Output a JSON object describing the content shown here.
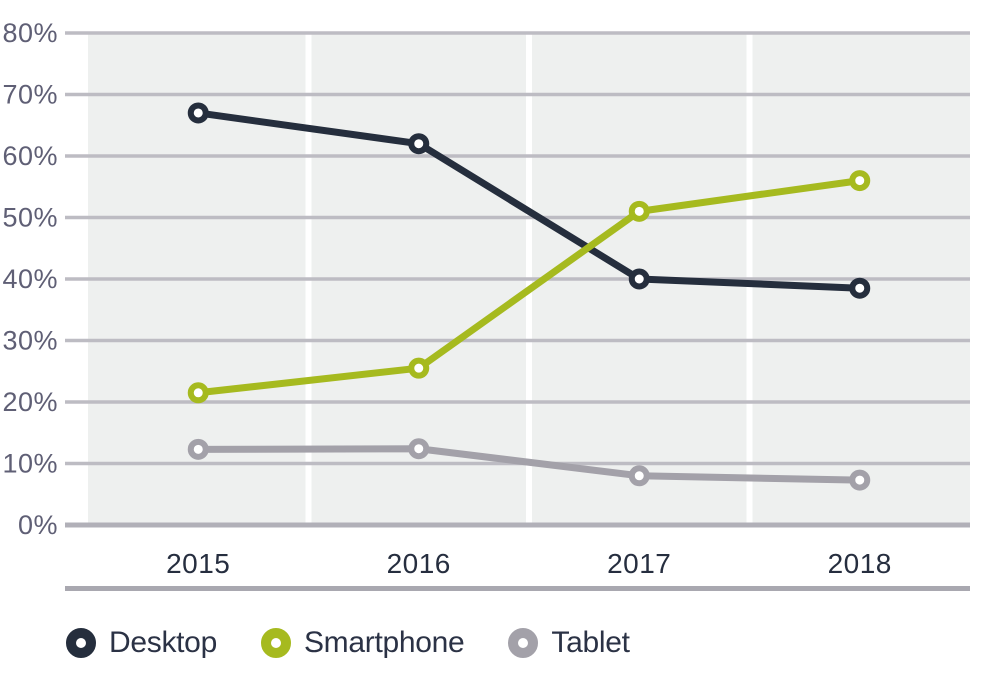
{
  "chart_data": {
    "type": "line",
    "title": "",
    "categories": [
      "2015",
      "2016",
      "2017",
      "2018"
    ],
    "series": [
      {
        "name": "Desktop",
        "color": "#252e3d",
        "values": [
          67,
          62,
          40,
          38.5
        ]
      },
      {
        "name": "Smartphone",
        "color": "#a6ba1f",
        "values": [
          21.5,
          25.5,
          51,
          56
        ]
      },
      {
        "name": "Tablet",
        "color": "#a3a1a9",
        "values": [
          12.3,
          12.4,
          8,
          7.3
        ]
      }
    ],
    "unit": "%",
    "ylim": [
      0,
      80
    ],
    "y_ticks": [
      "80%",
      "70%",
      "60%",
      "50%",
      "40%",
      "30%",
      "20%",
      "10%",
      "0%"
    ],
    "grid": true,
    "legend_position": "bottom",
    "colors": {
      "plot_background": "#eef0ef",
      "band_separator": "#ffffff",
      "gridline": "#bdbcc3",
      "zero_line": "#b1b0b8",
      "axis_separator": "#a9a8b0",
      "y_tick_text": "#5f5f75",
      "x_tick_text": "#262e3f",
      "legend_text": "#2b3245",
      "marker_fill": "#ffffff"
    }
  }
}
